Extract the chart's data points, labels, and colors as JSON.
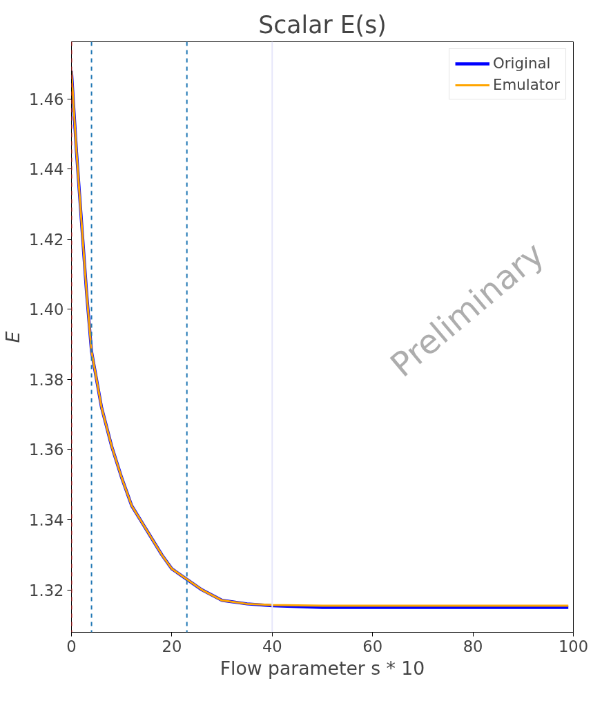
{
  "chart_data": {
    "type": "line",
    "title": "Scalar E(s)",
    "xlabel": "Flow parameter s * 10",
    "ylabel": "E",
    "x": [
      0,
      1,
      2,
      3,
      4,
      6,
      8,
      10,
      12,
      15,
      18,
      20,
      23,
      26,
      30,
      35,
      40,
      50,
      60,
      70,
      80,
      90,
      99
    ],
    "series": [
      {
        "name": "Original",
        "color": "#0000ff",
        "values": [
          1.468,
          1.445,
          1.425,
          1.405,
          1.388,
          1.372,
          1.361,
          1.352,
          1.344,
          1.337,
          1.33,
          1.326,
          1.323,
          1.32,
          1.317,
          1.316,
          1.3155,
          1.315,
          1.315,
          1.315,
          1.315,
          1.315,
          1.315
        ]
      },
      {
        "name": "Emulator",
        "color": "#ffa500",
        "values": [
          1.468,
          1.445,
          1.425,
          1.405,
          1.388,
          1.372,
          1.361,
          1.352,
          1.344,
          1.337,
          1.33,
          1.326,
          1.323,
          1.32,
          1.317,
          1.316,
          1.3157,
          1.3155,
          1.3155,
          1.3155,
          1.3155,
          1.3155,
          1.3155
        ]
      }
    ],
    "xlim": [
      0,
      100
    ],
    "ylim": [
      1.3079,
      1.4763
    ],
    "xticks": [
      0,
      20,
      40,
      60,
      80,
      100
    ],
    "yticks": [
      1.32,
      1.34,
      1.36,
      1.38,
      {
        "value": 1.4,
        "label": "1.40"
      },
      1.42,
      1.44,
      1.46
    ],
    "ref_lines": [
      {
        "axis": "x",
        "value": 0,
        "color": "#d62728",
        "line_style": "dashed"
      },
      {
        "axis": "x",
        "value": 4,
        "color": "#1f77b4",
        "line_style": "dashed"
      },
      {
        "axis": "x",
        "value": 23,
        "color": "#1f77b4",
        "line_style": "dashed"
      },
      {
        "axis": "x",
        "value": 40,
        "color": "#e6e6fa",
        "line_style": "solid"
      }
    ],
    "annotations": [
      "Preliminary"
    ],
    "legend": "top right",
    "grid": false,
    "marker": "none",
    "line_style": "solid"
  }
}
